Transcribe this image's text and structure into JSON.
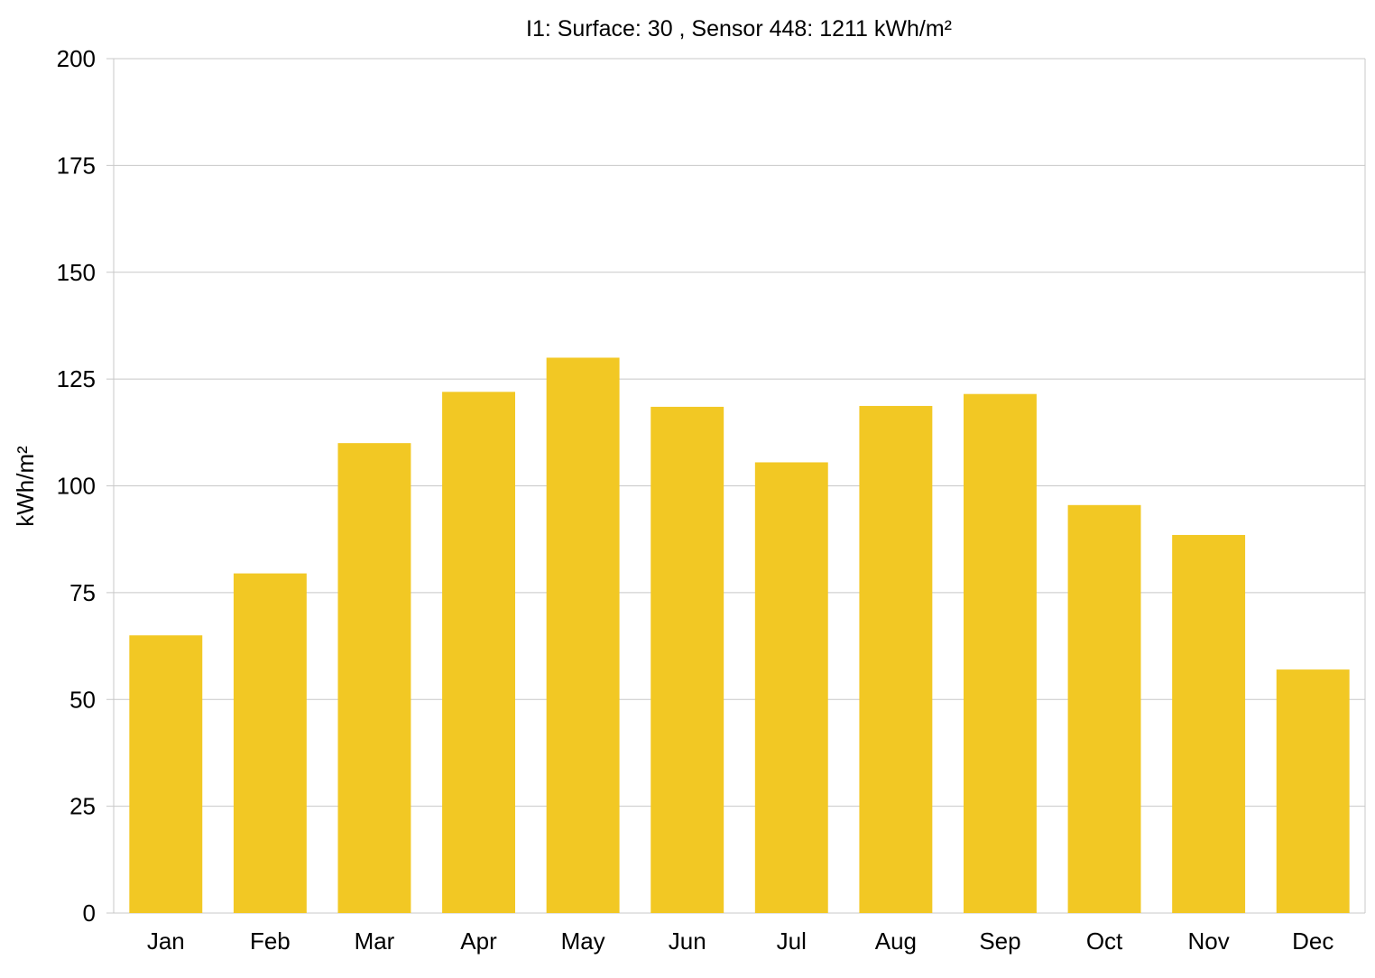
{
  "chart_data": {
    "type": "bar",
    "title": "I1: Surface: 30 , Sensor 448: 1211 kWh/m²",
    "xlabel": "",
    "ylabel": "kWh/m²",
    "categories": [
      "Jan",
      "Feb",
      "Mar",
      "Apr",
      "May",
      "Jun",
      "Jul",
      "Aug",
      "Sep",
      "Oct",
      "Nov",
      "Dec"
    ],
    "values": [
      65,
      79.5,
      110,
      122,
      130,
      118.5,
      105.5,
      118.7,
      121.5,
      95.5,
      88.5,
      57
    ],
    "ylim": [
      0,
      200
    ],
    "yticks": [
      "0",
      "25",
      "50",
      "75",
      "100",
      "125",
      "150",
      "175",
      "200"
    ],
    "grid": true,
    "bar_color": "#f2c824",
    "grid_color": "#c8c8c8"
  }
}
